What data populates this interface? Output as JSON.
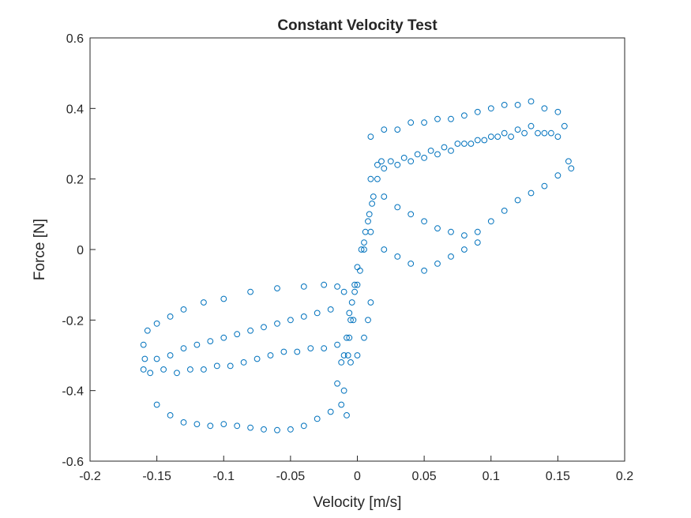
{
  "chart_data": {
    "type": "scatter",
    "title": "Constant Velocity Test",
    "xlabel": "Velocity [m/s]",
    "ylabel": "Force [N]",
    "xlim": [
      -0.2,
      0.2
    ],
    "ylim": [
      -0.6,
      0.6
    ],
    "xticks": [
      -0.2,
      -0.15,
      -0.1,
      -0.05,
      0,
      0.05,
      0.1,
      0.15,
      0.2
    ],
    "yticks": [
      -0.6,
      -0.4,
      -0.2,
      0,
      0.2,
      0.4,
      0.6
    ],
    "xtick_labels": [
      "-0.2",
      "-0.15",
      "-0.1",
      "-0.05",
      "0",
      "0.05",
      "0.1",
      "0.15",
      "0.2"
    ],
    "ytick_labels": [
      "-0.6",
      "-0.4",
      "-0.2",
      "0",
      "0.2",
      "0.4",
      "0.6"
    ],
    "grid": false,
    "legend": "none",
    "marker": "open-circle",
    "color": "#0072BD",
    "series": [
      {
        "points": [
          [
            -0.16,
            -0.34
          ],
          [
            -0.159,
            -0.31
          ],
          [
            -0.16,
            -0.27
          ],
          [
            -0.157,
            -0.23
          ],
          [
            -0.15,
            -0.21
          ],
          [
            -0.14,
            -0.19
          ],
          [
            -0.13,
            -0.17
          ],
          [
            -0.115,
            -0.15
          ],
          [
            -0.1,
            -0.14
          ],
          [
            -0.08,
            -0.12
          ],
          [
            -0.06,
            -0.11
          ],
          [
            -0.04,
            -0.105
          ],
          [
            -0.025,
            -0.1
          ],
          [
            -0.015,
            -0.105
          ],
          [
            -0.01,
            -0.12
          ],
          [
            -0.15,
            -0.44
          ],
          [
            -0.14,
            -0.47
          ],
          [
            -0.13,
            -0.49
          ],
          [
            -0.12,
            -0.495
          ],
          [
            -0.11,
            -0.5
          ],
          [
            -0.1,
            -0.495
          ],
          [
            -0.09,
            -0.5
          ],
          [
            -0.08,
            -0.505
          ],
          [
            -0.07,
            -0.51
          ],
          [
            -0.06,
            -0.512
          ],
          [
            -0.05,
            -0.51
          ],
          [
            -0.04,
            -0.5
          ],
          [
            -0.03,
            -0.48
          ],
          [
            -0.02,
            -0.46
          ],
          [
            -0.012,
            -0.44
          ],
          [
            -0.008,
            -0.47
          ],
          [
            -0.155,
            -0.35
          ],
          [
            -0.145,
            -0.34
          ],
          [
            -0.135,
            -0.35
          ],
          [
            -0.125,
            -0.34
          ],
          [
            -0.115,
            -0.34
          ],
          [
            -0.105,
            -0.33
          ],
          [
            -0.095,
            -0.33
          ],
          [
            -0.085,
            -0.32
          ],
          [
            -0.075,
            -0.31
          ],
          [
            -0.065,
            -0.3
          ],
          [
            -0.055,
            -0.29
          ],
          [
            -0.045,
            -0.29
          ],
          [
            -0.035,
            -0.28
          ],
          [
            -0.025,
            -0.28
          ],
          [
            -0.015,
            -0.27
          ],
          [
            -0.15,
            -0.31
          ],
          [
            -0.14,
            -0.3
          ],
          [
            -0.13,
            -0.28
          ],
          [
            -0.12,
            -0.27
          ],
          [
            -0.11,
            -0.26
          ],
          [
            -0.1,
            -0.25
          ],
          [
            -0.09,
            -0.24
          ],
          [
            -0.08,
            -0.23
          ],
          [
            -0.07,
            -0.22
          ],
          [
            -0.06,
            -0.21
          ],
          [
            -0.05,
            -0.2
          ],
          [
            -0.04,
            -0.19
          ],
          [
            -0.03,
            -0.18
          ],
          [
            -0.02,
            -0.17
          ],
          [
            -0.01,
            -0.4
          ],
          [
            -0.007,
            -0.3
          ],
          [
            -0.005,
            -0.2
          ],
          [
            -0.004,
            -0.15
          ],
          [
            -0.002,
            -0.1
          ],
          [
            0.0,
            -0.05
          ],
          [
            0.003,
            0.0
          ],
          [
            0.006,
            0.05
          ],
          [
            0.009,
            0.1
          ],
          [
            0.012,
            0.15
          ],
          [
            0.015,
            0.2
          ],
          [
            0.018,
            0.25
          ],
          [
            -0.015,
            -0.38
          ],
          [
            -0.012,
            -0.32
          ],
          [
            -0.008,
            -0.25
          ],
          [
            -0.006,
            -0.18
          ],
          [
            -0.002,
            -0.12
          ],
          [
            0.002,
            -0.06
          ],
          [
            0.005,
            0.02
          ],
          [
            0.008,
            0.08
          ],
          [
            0.011,
            0.13
          ],
          [
            0.01,
            0.2
          ],
          [
            0.02,
            0.23
          ],
          [
            0.03,
            0.24
          ],
          [
            0.04,
            0.25
          ],
          [
            0.05,
            0.26
          ],
          [
            0.06,
            0.27
          ],
          [
            0.07,
            0.28
          ],
          [
            0.08,
            0.3
          ],
          [
            0.09,
            0.31
          ],
          [
            0.1,
            0.32
          ],
          [
            0.11,
            0.33
          ],
          [
            0.12,
            0.34
          ],
          [
            0.13,
            0.35
          ],
          [
            0.14,
            0.33
          ],
          [
            0.15,
            0.32
          ],
          [
            0.01,
            0.32
          ],
          [
            0.02,
            0.34
          ],
          [
            0.03,
            0.34
          ],
          [
            0.04,
            0.36
          ],
          [
            0.05,
            0.36
          ],
          [
            0.06,
            0.37
          ],
          [
            0.07,
            0.37
          ],
          [
            0.08,
            0.38
          ],
          [
            0.09,
            0.39
          ],
          [
            0.1,
            0.4
          ],
          [
            0.11,
            0.41
          ],
          [
            0.12,
            0.41
          ],
          [
            0.13,
            0.42
          ],
          [
            0.14,
            0.4
          ],
          [
            0.15,
            0.39
          ],
          [
            0.155,
            0.35
          ],
          [
            0.015,
            0.24
          ],
          [
            0.025,
            0.25
          ],
          [
            0.035,
            0.26
          ],
          [
            0.045,
            0.27
          ],
          [
            0.055,
            0.28
          ],
          [
            0.065,
            0.29
          ],
          [
            0.075,
            0.3
          ],
          [
            0.085,
            0.3
          ],
          [
            0.095,
            0.31
          ],
          [
            0.105,
            0.32
          ],
          [
            0.115,
            0.32
          ],
          [
            0.125,
            0.33
          ],
          [
            0.135,
            0.33
          ],
          [
            0.145,
            0.33
          ],
          [
            0.02,
            0.15
          ],
          [
            0.03,
            0.12
          ],
          [
            0.04,
            0.1
          ],
          [
            0.05,
            0.08
          ],
          [
            0.06,
            0.06
          ],
          [
            0.07,
            0.05
          ],
          [
            0.08,
            0.04
          ],
          [
            0.09,
            0.05
          ],
          [
            0.1,
            0.08
          ],
          [
            0.11,
            0.11
          ],
          [
            0.12,
            0.14
          ],
          [
            0.13,
            0.16
          ],
          [
            0.14,
            0.18
          ],
          [
            0.15,
            0.21
          ],
          [
            0.158,
            0.25
          ],
          [
            0.16,
            0.23
          ],
          [
            0.01,
            0.05
          ],
          [
            0.02,
            0.0
          ],
          [
            0.03,
            -0.02
          ],
          [
            0.04,
            -0.04
          ],
          [
            0.05,
            -0.06
          ],
          [
            0.06,
            -0.04
          ],
          [
            0.07,
            -0.02
          ],
          [
            0.08,
            0.0
          ],
          [
            0.09,
            0.02
          ],
          [
            0.005,
            0.0
          ],
          [
            0.0,
            -0.1
          ],
          [
            -0.003,
            -0.2
          ],
          [
            -0.006,
            -0.25
          ],
          [
            -0.01,
            -0.3
          ],
          [
            -0.005,
            -0.32
          ],
          [
            0.0,
            -0.3
          ],
          [
            0.005,
            -0.25
          ],
          [
            0.008,
            -0.2
          ],
          [
            0.01,
            -0.15
          ]
        ]
      }
    ]
  }
}
